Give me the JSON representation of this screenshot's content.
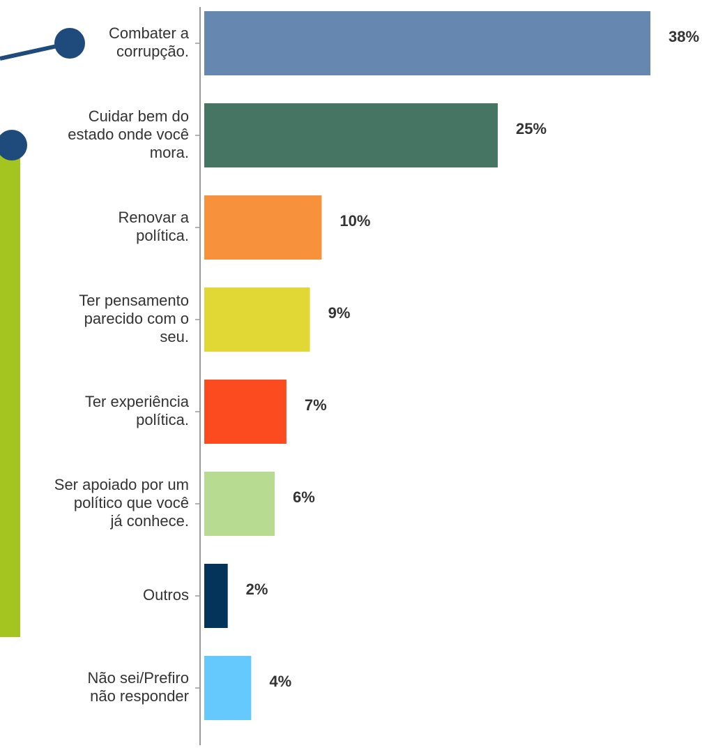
{
  "chart_data": {
    "type": "bar",
    "orientation": "horizontal",
    "categories": [
      [
        "Combater a",
        "corrupção."
      ],
      [
        "Cuidar bem do",
        "estado onde você",
        "mora."
      ],
      [
        "Renovar a",
        "política."
      ],
      [
        "Ter pensamento",
        "parecido com o",
        "seu."
      ],
      [
        "Ter experiência",
        "política."
      ],
      [
        "Ser apoiado por um",
        "político que você",
        "já conhece."
      ],
      [
        "Outros"
      ],
      [
        "Não sei/Prefiro",
        "não responder"
      ]
    ],
    "values": [
      38,
      25,
      10,
      9,
      7,
      6,
      2,
      4
    ],
    "value_labels": [
      "38%",
      "25%",
      "10%",
      "9%",
      "7%",
      "6%",
      "2%",
      "4%"
    ],
    "colors": [
      "#6688b0",
      "#467563",
      "#f8913c",
      "#e2d835",
      "#fd4b20",
      "#b7db91",
      "#05345a",
      "#66c9fd"
    ],
    "xlim": [
      0,
      38
    ],
    "grid": false,
    "title": "",
    "xlabel": "",
    "ylabel": ""
  },
  "decorations": {
    "connector_color": "#1f4a7c",
    "side_bar_color": "#a4c420"
  }
}
